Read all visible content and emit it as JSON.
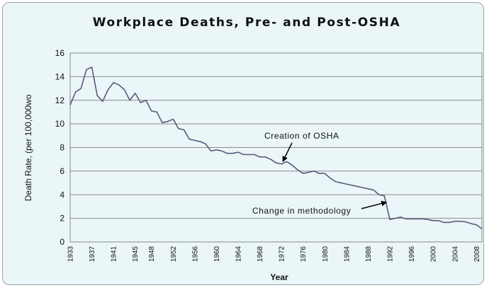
{
  "chart_data": {
    "type": "line",
    "title": "Workplace Deaths, Pre- and Post-OSHA",
    "xlabel": "Year",
    "ylabel": "Death Rate, (per 100,000wo",
    "xlim": [
      1933,
      2009
    ],
    "ylim": [
      0,
      16
    ],
    "yticks": [
      0,
      2,
      4,
      6,
      8,
      10,
      12,
      14,
      16
    ],
    "xticks": [
      1933,
      1937,
      1941,
      1945,
      1948,
      1952,
      1956,
      1960,
      1964,
      1968,
      1972,
      1976,
      1980,
      1984,
      1988,
      1992,
      1996,
      2000,
      2004,
      2008
    ],
    "grid": "horizontal",
    "line_color": "#5a5a7e",
    "series": [
      {
        "x": [
          1933,
          1934,
          1935,
          1936,
          1937,
          1938,
          1939,
          1940,
          1941,
          1942,
          1943,
          1944,
          1945,
          1946,
          1947,
          1948,
          1949,
          1950,
          1951,
          1952,
          1953,
          1954,
          1955,
          1956,
          1957,
          1958,
          1959,
          1960,
          1961,
          1962,
          1963,
          1964,
          1965,
          1966,
          1967,
          1968,
          1969,
          1970,
          1971,
          1972,
          1973,
          1974,
          1975,
          1976,
          1977,
          1978,
          1979,
          1980,
          1981,
          1982,
          1983,
          1984,
          1985,
          1986,
          1987,
          1988,
          1989,
          1990,
          1991,
          1992,
          1993,
          1994,
          1995,
          1996,
          1997,
          1998,
          1999,
          2000,
          2001,
          2002,
          2003,
          2004,
          2005,
          2006,
          2007,
          2008,
          2009
        ],
        "y": [
          11.6,
          12.7,
          13.0,
          14.6,
          14.8,
          12.4,
          11.9,
          12.9,
          13.5,
          13.3,
          12.9,
          12.0,
          12.6,
          11.8,
          12.0,
          11.1,
          11.0,
          10.1,
          10.2,
          10.4,
          9.6,
          9.5,
          8.7,
          8.6,
          8.5,
          8.3,
          7.7,
          7.8,
          7.7,
          7.5,
          7.5,
          7.6,
          7.4,
          7.4,
          7.4,
          7.2,
          7.2,
          7.0,
          6.7,
          6.6,
          6.8,
          6.5,
          6.1,
          5.8,
          5.9,
          6.0,
          5.8,
          5.8,
          5.4,
          5.1,
          5.0,
          4.9,
          4.8,
          4.7,
          4.6,
          4.5,
          4.4,
          4.0,
          3.9,
          1.9,
          2.0,
          2.1,
          1.95,
          1.95,
          1.95,
          1.95,
          1.9,
          1.8,
          1.8,
          1.65,
          1.65,
          1.75,
          1.75,
          1.7,
          1.55,
          1.45,
          1.1
        ]
      }
    ],
    "annotations": [
      {
        "id": "osha",
        "text": "Creation of OSHA",
        "point": [
          1972,
          6.7
        ]
      },
      {
        "id": "method",
        "text": "Change in methodology",
        "point": [
          1991.5,
          3.3
        ]
      }
    ]
  }
}
